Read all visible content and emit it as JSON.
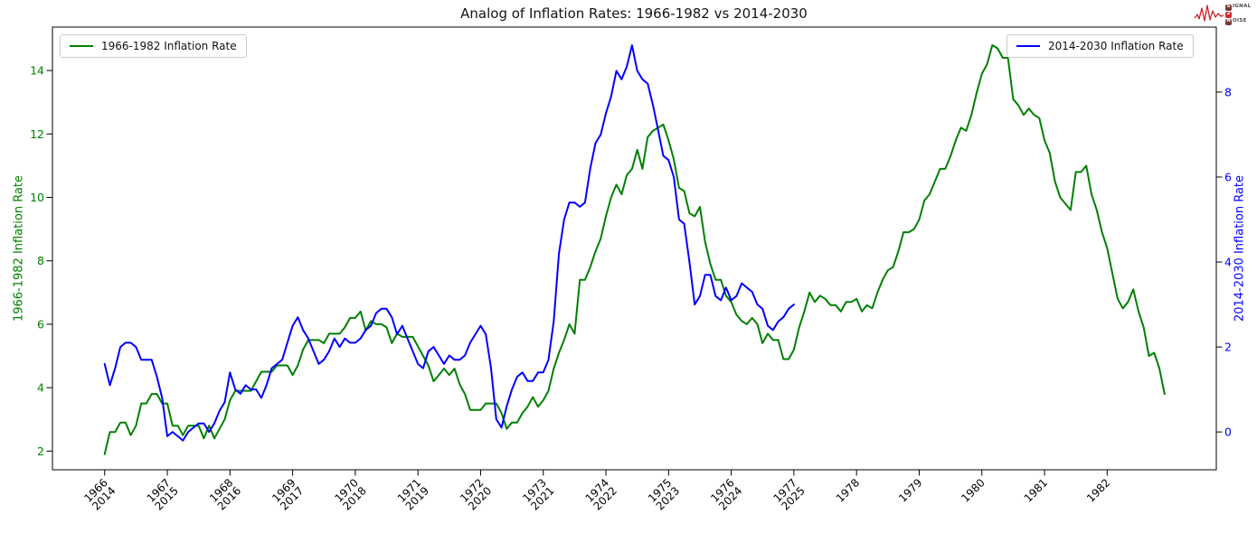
{
  "logo": {
    "s": "S",
    "ignal": "IGNAL",
    "two": "2",
    "n": "N",
    "oise": "OISE"
  },
  "chart_data": {
    "type": "line",
    "title": "Analog of Inflation Rates: 1966-1982 vs 2014-2030",
    "grid": false,
    "legend_left": "upper left",
    "legend_right": "upper right",
    "x_range_months": [
      -10.0,
      212.9
    ],
    "x_ticks": [
      {
        "month": 0,
        "label_top": "1966",
        "label_bottom": "2014"
      },
      {
        "month": 12,
        "label_top": "1967",
        "label_bottom": "2015"
      },
      {
        "month": 24,
        "label_top": "1968",
        "label_bottom": "2016"
      },
      {
        "month": 36,
        "label_top": "1969",
        "label_bottom": "2017"
      },
      {
        "month": 48,
        "label_top": "1970",
        "label_bottom": "2018"
      },
      {
        "month": 60,
        "label_top": "1971",
        "label_bottom": "2019"
      },
      {
        "month": 72,
        "label_top": "1972",
        "label_bottom": "2020"
      },
      {
        "month": 84,
        "label_top": "1973",
        "label_bottom": "2021"
      },
      {
        "month": 96,
        "label_top": "1974",
        "label_bottom": "2022"
      },
      {
        "month": 108,
        "label_top": "1975",
        "label_bottom": "2023"
      },
      {
        "month": 120,
        "label_top": "1976",
        "label_bottom": "2024"
      },
      {
        "month": 132,
        "label_top": "1977",
        "label_bottom": "2025"
      },
      {
        "month": 144,
        "label_top": "1978",
        "label_bottom": null
      },
      {
        "month": 156,
        "label_top": "1979",
        "label_bottom": null
      },
      {
        "month": 168,
        "label_top": "1980",
        "label_bottom": null
      },
      {
        "month": 180,
        "label_top": "1981",
        "label_bottom": null
      },
      {
        "month": 192,
        "label_top": "1982",
        "label_bottom": null
      }
    ],
    "left_axis": {
      "label": "1966-1982 Inflation Rate",
      "color": "#008000",
      "ticks": [
        2,
        4,
        6,
        8,
        10,
        12,
        14
      ],
      "range": [
        1.41,
        15.37
      ]
    },
    "right_axis": {
      "label": "2014-2030 Inflation Rate",
      "color": "#0000ff",
      "ticks": [
        0,
        2,
        4,
        6,
        8
      ],
      "range": [
        -0.89,
        9.53
      ]
    },
    "series": [
      {
        "name": "1966-1982 Inflation Rate",
        "color": "#008000",
        "axis": "left",
        "start": "1966-01",
        "frequency": "monthly",
        "values": [
          1.9,
          2.6,
          2.6,
          2.9,
          2.9,
          2.5,
          2.8,
          3.5,
          3.5,
          3.8,
          3.8,
          3.5,
          3.5,
          2.8,
          2.8,
          2.5,
          2.8,
          2.8,
          2.8,
          2.4,
          2.8,
          2.4,
          2.7,
          3.0,
          3.6,
          3.9,
          3.9,
          3.9,
          3.9,
          4.2,
          4.5,
          4.5,
          4.5,
          4.7,
          4.7,
          4.7,
          4.4,
          4.7,
          5.2,
          5.5,
          5.5,
          5.5,
          5.4,
          5.7,
          5.7,
          5.7,
          5.9,
          6.2,
          6.2,
          6.4,
          5.8,
          6.1,
          6.0,
          6.0,
          5.9,
          5.4,
          5.7,
          5.6,
          5.6,
          5.6,
          5.3,
          5.0,
          4.7,
          4.2,
          4.4,
          4.6,
          4.4,
          4.6,
          4.1,
          3.8,
          3.3,
          3.3,
          3.3,
          3.5,
          3.5,
          3.5,
          3.2,
          2.7,
          2.9,
          2.9,
          3.2,
          3.4,
          3.7,
          3.4,
          3.6,
          3.9,
          4.6,
          5.1,
          5.5,
          6.0,
          5.7,
          7.4,
          7.4,
          7.8,
          8.3,
          8.7,
          9.4,
          10.0,
          10.4,
          10.1,
          10.7,
          10.9,
          11.5,
          10.9,
          11.9,
          12.1,
          12.2,
          12.3,
          11.8,
          11.2,
          10.3,
          10.2,
          9.5,
          9.4,
          9.7,
          8.6,
          7.9,
          7.4,
          7.4,
          6.9,
          6.7,
          6.3,
          6.1,
          6.0,
          6.2,
          6.0,
          5.4,
          5.7,
          5.5,
          5.5,
          4.9,
          4.9,
          5.2,
          5.9,
          6.4,
          7.0,
          6.7,
          6.9,
          6.8,
          6.6,
          6.6,
          6.4,
          6.7,
          6.7,
          6.8,
          6.4,
          6.6,
          6.5,
          7.0,
          7.4,
          7.7,
          7.8,
          8.3,
          8.9,
          8.9,
          9.0,
          9.3,
          9.9,
          10.1,
          10.5,
          10.9,
          10.9,
          11.3,
          11.8,
          12.2,
          12.1,
          12.6,
          13.3,
          13.9,
          14.2,
          14.8,
          14.7,
          14.4,
          14.4,
          13.1,
          12.9,
          12.6,
          12.8,
          12.6,
          12.5,
          11.8,
          11.4,
          10.5,
          10.0,
          9.8,
          9.6,
          10.8,
          10.8,
          11.0,
          10.1,
          9.6,
          8.9,
          8.4,
          7.6,
          6.8,
          6.5,
          6.7,
          7.1,
          6.4,
          5.9,
          5.0,
          5.1,
          4.6,
          3.8
        ]
      },
      {
        "name": "2014-2030 Inflation Rate",
        "color": "#0000ff",
        "axis": "right",
        "start": "2014-01",
        "frequency": "monthly",
        "values": [
          1.6,
          1.1,
          1.5,
          2.0,
          2.1,
          2.1,
          2.0,
          1.7,
          1.7,
          1.7,
          1.3,
          0.8,
          -0.1,
          0.0,
          -0.1,
          -0.2,
          0.0,
          0.1,
          0.2,
          0.2,
          0.0,
          0.2,
          0.5,
          0.7,
          1.4,
          1.0,
          0.9,
          1.1,
          1.0,
          1.0,
          0.8,
          1.1,
          1.5,
          1.6,
          1.7,
          2.1,
          2.5,
          2.7,
          2.4,
          2.2,
          1.9,
          1.6,
          1.7,
          1.9,
          2.2,
          2.0,
          2.2,
          2.1,
          2.1,
          2.2,
          2.4,
          2.5,
          2.8,
          2.9,
          2.9,
          2.7,
          2.3,
          2.5,
          2.2,
          1.9,
          1.6,
          1.5,
          1.9,
          2.0,
          1.8,
          1.6,
          1.8,
          1.7,
          1.7,
          1.8,
          2.1,
          2.3,
          2.5,
          2.3,
          1.5,
          0.3,
          0.1,
          0.6,
          1.0,
          1.3,
          1.4,
          1.2,
          1.2,
          1.4,
          1.4,
          1.7,
          2.6,
          4.2,
          5.0,
          5.4,
          5.4,
          5.3,
          5.4,
          6.2,
          6.8,
          7.0,
          7.5,
          7.9,
          8.5,
          8.3,
          8.6,
          9.1,
          8.5,
          8.3,
          8.2,
          7.7,
          7.1,
          6.5,
          6.4,
          6.0,
          5.0,
          4.9,
          4.0,
          3.0,
          3.2,
          3.7,
          3.7,
          3.2,
          3.1,
          3.4,
          3.1,
          3.2,
          3.5,
          3.4,
          3.3,
          3.0,
          2.9,
          2.5,
          2.4,
          2.6,
          2.7,
          2.9,
          3.0
        ]
      }
    ]
  }
}
